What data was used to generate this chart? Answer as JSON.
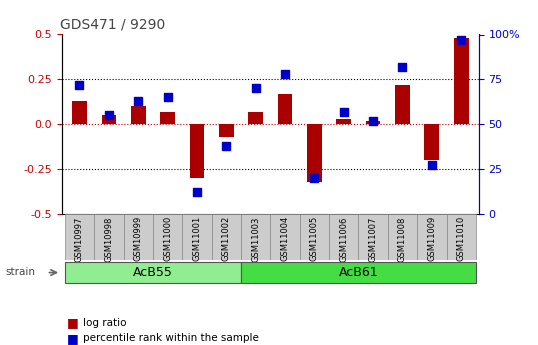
{
  "title": "GDS471 / 9290",
  "samples": [
    "GSM10997",
    "GSM10998",
    "GSM10999",
    "GSM11000",
    "GSM11001",
    "GSM11002",
    "GSM11003",
    "GSM11004",
    "GSM11005",
    "GSM11006",
    "GSM11007",
    "GSM11008",
    "GSM11009",
    "GSM11010"
  ],
  "log_ratio": [
    0.13,
    0.05,
    0.1,
    0.07,
    -0.3,
    -0.07,
    0.07,
    0.17,
    -0.32,
    0.03,
    0.02,
    0.22,
    -0.2,
    0.48
  ],
  "percentile": [
    72,
    55,
    63,
    65,
    12,
    38,
    70,
    78,
    20,
    57,
    52,
    82,
    27,
    97
  ],
  "groups": [
    {
      "label": "AcB55",
      "start": 0,
      "end": 6,
      "color": "#90ee90"
    },
    {
      "label": "AcB61",
      "start": 6,
      "end": 14,
      "color": "#44dd44"
    }
  ],
  "ylim_left": [
    -0.5,
    0.5
  ],
  "ylim_right": [
    0,
    100
  ],
  "yticks_left": [
    -0.5,
    -0.25,
    0.0,
    0.25,
    0.5
  ],
  "yticks_right": [
    0,
    25,
    50,
    75,
    100
  ],
  "bar_color": "#aa0000",
  "dot_color": "#0000cc",
  "bar_width": 0.5,
  "background_color": "#ffffff",
  "plot_bg": "#ffffff",
  "left_label_color": "#cc0000",
  "right_label_color": "#0000cc",
  "zero_line_color": "#cc0000",
  "legend_log_ratio": "log ratio",
  "legend_percentile": "percentile rank within the sample"
}
